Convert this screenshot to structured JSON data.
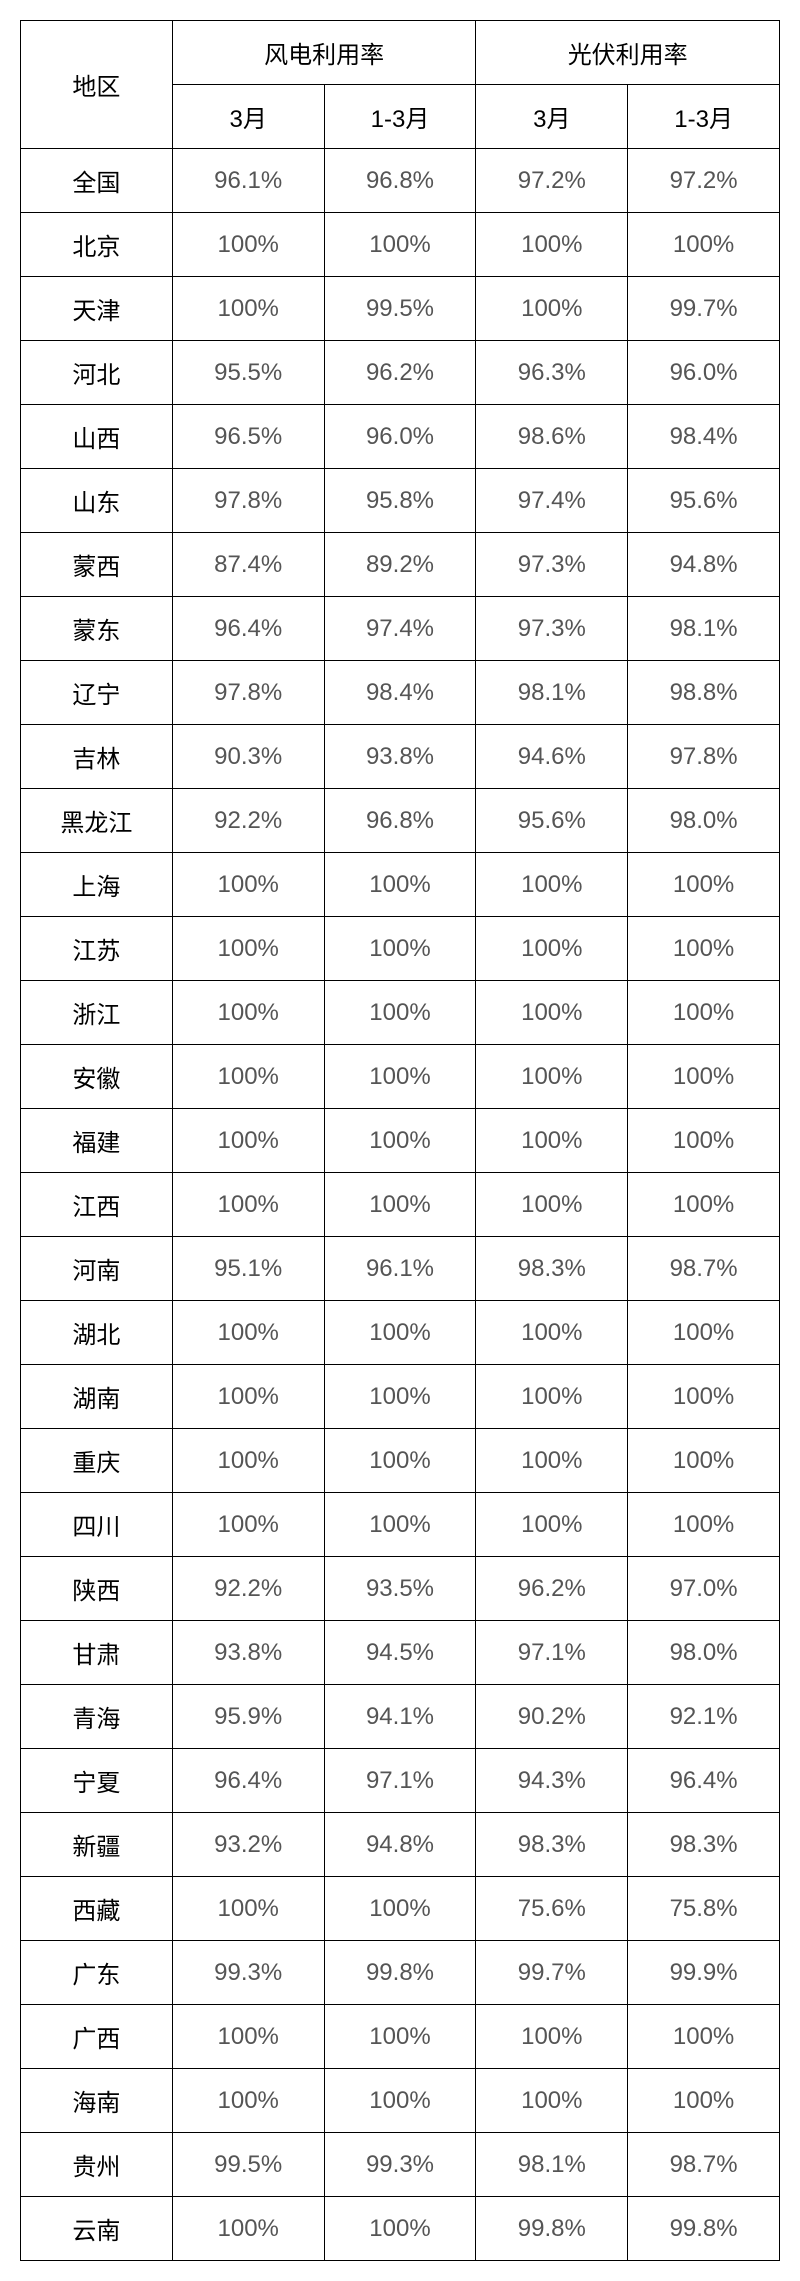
{
  "headers": {
    "region": "地区",
    "wind": "风电利用率",
    "solar": "光伏利用率",
    "march": "3月",
    "jan_march": "1-3月"
  },
  "rows": [
    {
      "region": "全国",
      "wind_march": "96.1%",
      "wind_jan_march": "96.8%",
      "solar_march": "97.2%",
      "solar_jan_march": "97.2%"
    },
    {
      "region": "北京",
      "wind_march": "100%",
      "wind_jan_march": "100%",
      "solar_march": "100%",
      "solar_jan_march": "100%"
    },
    {
      "region": "天津",
      "wind_march": "100%",
      "wind_jan_march": "99.5%",
      "solar_march": "100%",
      "solar_jan_march": "99.7%"
    },
    {
      "region": "河北",
      "wind_march": "95.5%",
      "wind_jan_march": "96.2%",
      "solar_march": "96.3%",
      "solar_jan_march": "96.0%"
    },
    {
      "region": "山西",
      "wind_march": "96.5%",
      "wind_jan_march": "96.0%",
      "solar_march": "98.6%",
      "solar_jan_march": "98.4%"
    },
    {
      "region": "山东",
      "wind_march": "97.8%",
      "wind_jan_march": "95.8%",
      "solar_march": "97.4%",
      "solar_jan_march": "95.6%"
    },
    {
      "region": "蒙西",
      "wind_march": "87.4%",
      "wind_jan_march": "89.2%",
      "solar_march": "97.3%",
      "solar_jan_march": "94.8%"
    },
    {
      "region": "蒙东",
      "wind_march": "96.4%",
      "wind_jan_march": "97.4%",
      "solar_march": "97.3%",
      "solar_jan_march": "98.1%"
    },
    {
      "region": "辽宁",
      "wind_march": "97.8%",
      "wind_jan_march": "98.4%",
      "solar_march": "98.1%",
      "solar_jan_march": "98.8%"
    },
    {
      "region": "吉林",
      "wind_march": "90.3%",
      "wind_jan_march": "93.8%",
      "solar_march": "94.6%",
      "solar_jan_march": "97.8%"
    },
    {
      "region": "黑龙江",
      "wind_march": "92.2%",
      "wind_jan_march": "96.8%",
      "solar_march": "95.6%",
      "solar_jan_march": "98.0%"
    },
    {
      "region": "上海",
      "wind_march": "100%",
      "wind_jan_march": "100%",
      "solar_march": "100%",
      "solar_jan_march": "100%"
    },
    {
      "region": "江苏",
      "wind_march": "100%",
      "wind_jan_march": "100%",
      "solar_march": "100%",
      "solar_jan_march": "100%"
    },
    {
      "region": "浙江",
      "wind_march": "100%",
      "wind_jan_march": "100%",
      "solar_march": "100%",
      "solar_jan_march": "100%"
    },
    {
      "region": "安徽",
      "wind_march": "100%",
      "wind_jan_march": "100%",
      "solar_march": "100%",
      "solar_jan_march": "100%"
    },
    {
      "region": "福建",
      "wind_march": "100%",
      "wind_jan_march": "100%",
      "solar_march": "100%",
      "solar_jan_march": "100%"
    },
    {
      "region": "江西",
      "wind_march": "100%",
      "wind_jan_march": "100%",
      "solar_march": "100%",
      "solar_jan_march": "100%"
    },
    {
      "region": "河南",
      "wind_march": "95.1%",
      "wind_jan_march": "96.1%",
      "solar_march": "98.3%",
      "solar_jan_march": "98.7%"
    },
    {
      "region": "湖北",
      "wind_march": "100%",
      "wind_jan_march": "100%",
      "solar_march": "100%",
      "solar_jan_march": "100%"
    },
    {
      "region": "湖南",
      "wind_march": "100%",
      "wind_jan_march": "100%",
      "solar_march": "100%",
      "solar_jan_march": "100%"
    },
    {
      "region": "重庆",
      "wind_march": "100%",
      "wind_jan_march": "100%",
      "solar_march": "100%",
      "solar_jan_march": "100%"
    },
    {
      "region": "四川",
      "wind_march": "100%",
      "wind_jan_march": "100%",
      "solar_march": "100%",
      "solar_jan_march": "100%"
    },
    {
      "region": "陕西",
      "wind_march": "92.2%",
      "wind_jan_march": "93.5%",
      "solar_march": "96.2%",
      "solar_jan_march": "97.0%"
    },
    {
      "region": "甘肃",
      "wind_march": "93.8%",
      "wind_jan_march": "94.5%",
      "solar_march": "97.1%",
      "solar_jan_march": "98.0%"
    },
    {
      "region": "青海",
      "wind_march": "95.9%",
      "wind_jan_march": "94.1%",
      "solar_march": "90.2%",
      "solar_jan_march": "92.1%"
    },
    {
      "region": "宁夏",
      "wind_march": "96.4%",
      "wind_jan_march": "97.1%",
      "solar_march": "94.3%",
      "solar_jan_march": "96.4%"
    },
    {
      "region": "新疆",
      "wind_march": "93.2%",
      "wind_jan_march": "94.8%",
      "solar_march": "98.3%",
      "solar_jan_march": "98.3%"
    },
    {
      "region": "西藏",
      "wind_march": "100%",
      "wind_jan_march": "100%",
      "solar_march": "75.6%",
      "solar_jan_march": "75.8%"
    },
    {
      "region": "广东",
      "wind_march": "99.3%",
      "wind_jan_march": "99.8%",
      "solar_march": "99.7%",
      "solar_jan_march": "99.9%"
    },
    {
      "region": "广西",
      "wind_march": "100%",
      "wind_jan_march": "100%",
      "solar_march": "100%",
      "solar_jan_march": "100%"
    },
    {
      "region": "海南",
      "wind_march": "100%",
      "wind_jan_march": "100%",
      "solar_march": "100%",
      "solar_jan_march": "100%"
    },
    {
      "region": "贵州",
      "wind_march": "99.5%",
      "wind_jan_march": "99.3%",
      "solar_march": "98.1%",
      "solar_jan_march": "98.7%"
    },
    {
      "region": "云南",
      "wind_march": "100%",
      "wind_jan_march": "100%",
      "solar_march": "99.8%",
      "solar_jan_march": "99.8%"
    }
  ],
  "styling": {
    "border_color": "#000000",
    "background_color": "#ffffff",
    "header_text_color": "#000000",
    "data_text_color": "#555555",
    "font_size": 24,
    "cell_padding": 14
  }
}
